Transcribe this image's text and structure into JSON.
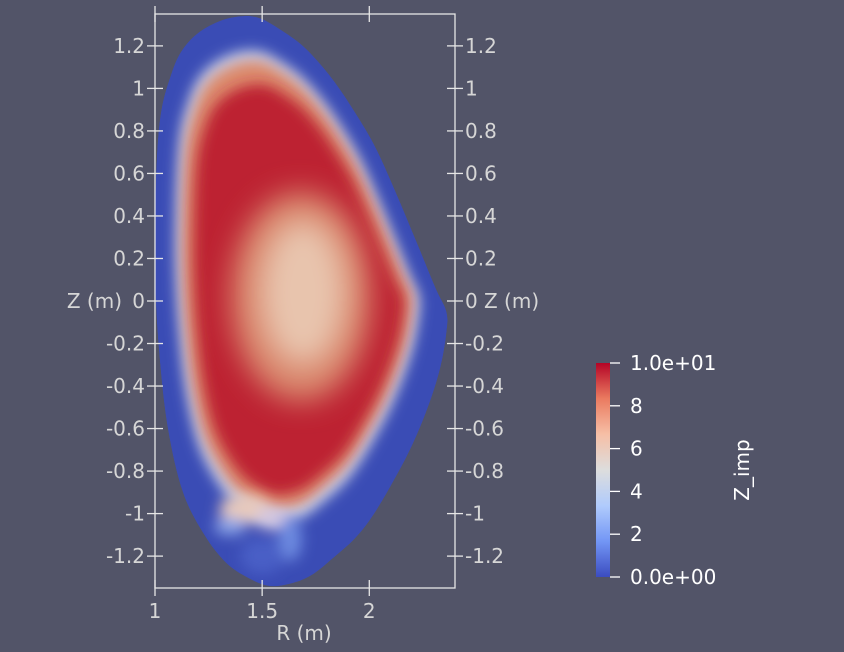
{
  "chart_data": {
    "type": "heatmap",
    "title": "",
    "xlabel": "R (m)",
    "ylabel_left": "Z (m)",
    "ylabel_right": "Z (m)",
    "xlim": [
      1,
      2.4
    ],
    "ylim": [
      -1.35,
      1.35
    ],
    "x_ticks": [
      {
        "value": 1,
        "label": "1"
      },
      {
        "value": 1.5,
        "label": "1.5"
      },
      {
        "value": 2,
        "label": "2"
      }
    ],
    "y_ticks": [
      {
        "value": 1.2,
        "label": "1.2"
      },
      {
        "value": 1,
        "label": "1"
      },
      {
        "value": 0.8,
        "label": "0.8"
      },
      {
        "value": 0.6,
        "label": "0.6"
      },
      {
        "value": 0.4,
        "label": "0.4"
      },
      {
        "value": 0.2,
        "label": "0.2"
      },
      {
        "value": 0,
        "label": "0"
      },
      {
        "value": -0.2,
        "label": "-0.2"
      },
      {
        "value": -0.4,
        "label": "-0.4"
      },
      {
        "value": -0.6,
        "label": "-0.6"
      },
      {
        "value": -0.8,
        "label": "-0.8"
      },
      {
        "value": -1,
        "label": "-1"
      },
      {
        "value": -1.2,
        "label": "-1.2"
      }
    ],
    "field": {
      "name": "Z_imp",
      "min": 0,
      "max": 10,
      "boundary_R": [
        1.01,
        1.03,
        1.07,
        1.12,
        1.2,
        1.31,
        1.41,
        1.49,
        1.58,
        1.69,
        1.8,
        1.9,
        2.02,
        2.12,
        2.22,
        2.31,
        2.36,
        2.36,
        2.33,
        2.27,
        2.19,
        2.1,
        2.01,
        1.93,
        1.83,
        1.73,
        1.63,
        1.53,
        1.43,
        1.33,
        1.23,
        1.13,
        1.06,
        1.02,
        1.0,
        1.0
      ],
      "boundary_Z": [
        0.7,
        0.9,
        1.05,
        1.17,
        1.26,
        1.32,
        1.34,
        1.33,
        1.28,
        1.2,
        1.08,
        0.94,
        0.74,
        0.52,
        0.28,
        0.06,
        -0.05,
        -0.15,
        -0.32,
        -0.51,
        -0.7,
        -0.87,
        -1.02,
        -1.12,
        -1.21,
        -1.29,
        -1.33,
        -1.34,
        -1.3,
        -1.23,
        -1.1,
        -0.9,
        -0.6,
        -0.25,
        0.1,
        0.4
      ],
      "core_center": [
        1.68,
        0.0
      ],
      "core_value": 5.2,
      "ridge_value": 9.5,
      "edge_value": 0.3
    },
    "colorbar": {
      "title": "Z_imp",
      "colormap": "cool-to-warm",
      "ticks": [
        {
          "value": 10,
          "label": "1.0e+01"
        },
        {
          "value": 8,
          "label": "8"
        },
        {
          "value": 6,
          "label": "6"
        },
        {
          "value": 4,
          "label": "4"
        },
        {
          "value": 2,
          "label": "2"
        },
        {
          "value": 0,
          "label": "0.0e+00"
        }
      ],
      "color_stops": [
        "#3b4cc0",
        "#7396f5",
        "#b0cbfc",
        "#dddddd",
        "#f6bfa6",
        "#ea7b60",
        "#b40426"
      ]
    },
    "grid": false,
    "legend_placement": "right"
  },
  "colors": {
    "background": "#525468",
    "axis": "#e6e6e6",
    "text": "#d6d6d6",
    "colorbar_text": "#ffffff",
    "edge_blue": "#3a4cb5",
    "mid_white": "#dddddd",
    "hot_red": "#b40426",
    "core_beige": "#e8c4ad"
  }
}
